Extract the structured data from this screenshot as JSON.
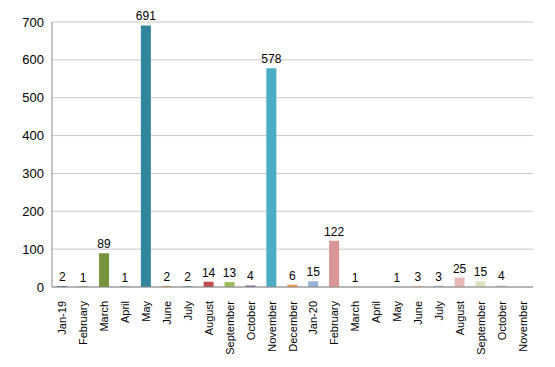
{
  "chart_data": {
    "type": "bar",
    "categories": [
      "Jan-19",
      "February",
      "March",
      "April",
      "May",
      "June",
      "July",
      "August",
      "September",
      "October",
      "November",
      "December",
      "Jan-20",
      "February",
      "March",
      "April",
      "May",
      "June",
      "July",
      "August",
      "September",
      "October",
      "November"
    ],
    "values": [
      2,
      1,
      89,
      1,
      691,
      2,
      2,
      14,
      13,
      4,
      578,
      6,
      15,
      122,
      1,
      0,
      1,
      3,
      3,
      25,
      15,
      4,
      0
    ],
    "colors": [
      "#1f497d",
      "#943634",
      "#77933c",
      "#5f497a",
      "#31859c",
      "#e46c0a",
      "#4f81bd",
      "#c0504d",
      "#9bbb59",
      "#8064a2",
      "#4bacc6",
      "#f79646",
      "#95b3d7",
      "#d99694",
      "#c3d69b",
      "#b3a2c7",
      "#93cddd",
      "#fac08f",
      "#95b3d7",
      "#e6b9b8",
      "#d7e4bd",
      "#ccc1da",
      "#b7dee8"
    ],
    "ylim": [
      0,
      700
    ],
    "yticks": [
      0,
      100,
      200,
      300,
      400,
      500,
      600,
      700
    ],
    "grid": true,
    "data_labels": true
  }
}
